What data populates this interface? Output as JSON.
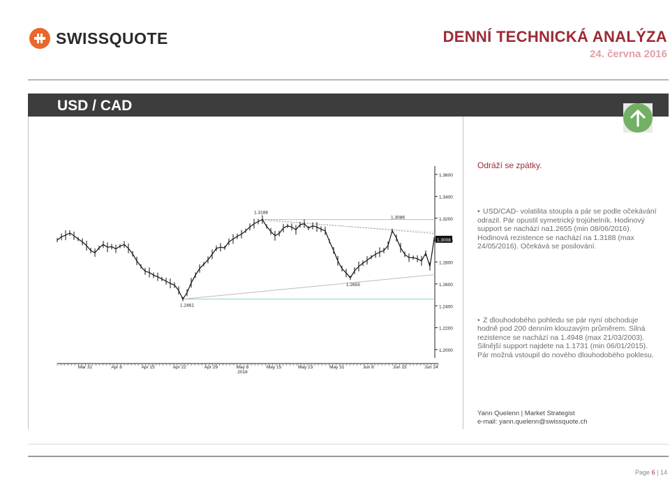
{
  "header": {
    "logo_text": "SWISSQUOTE",
    "report_title": "DENNÍ TECHNICKÁ ANALÝZA",
    "report_date": "24. června 2016"
  },
  "band": {
    "pair": "USD / CAD",
    "signal_icon": "arrow-up-icon"
  },
  "comment": {
    "headline": "Odráží se zpátky.",
    "bullets": [
      "USD/CAD- volatilita stoupla a pár se podle očekávání odrazil. Pár opustil symetrický trojúhelník. Hodinový support se nachází na1.2655 (min 08/06/2016). Hodinová rezistence se nachází na  1.3188 (max 24/05/2016). Očekává se posilování.",
      "Z dlouhodobého pohledu se pár nyní obchoduje hodně pod 200 denním klouzavým průměrem. Silná rezistence se nachází na 1.4948 (max 21/03/2003). Silnější support najdete na 1.1731 (min 06/01/2015). Pár možná vstoupil do nového dlouhodobého poklesu."
    ]
  },
  "author": {
    "line1": "Yann Quelenn | Market Strategist",
    "line2": "e-mail: yann.quelenn@swissquote.ch"
  },
  "footer": {
    "page_label": "Page",
    "page_num": "6",
    "page_sep": "|",
    "page_total": "14"
  },
  "colors": {
    "accent": "#9c2a36",
    "band": "#3d3d3d",
    "up": "#72b064",
    "trend": "#8fd0bf"
  },
  "chart_data": {
    "type": "line",
    "title": "",
    "ylim": [
      1.2,
      1.36
    ],
    "yticks": [
      "1.3600",
      "1.3400",
      "1.3200",
      "1.3000",
      "1.2800",
      "1.2600",
      "1.2400",
      "1.2200",
      "1.2000"
    ],
    "xticks": [
      "Mar 31",
      "Apr 8",
      "Apr 15",
      "Apr 22",
      "Apr 29",
      "May 8",
      "May 15",
      "May 23",
      "May 31",
      "Jun 8",
      "Jun 15",
      "Jun 24"
    ],
    "xtick_year": "2016",
    "series": [
      {
        "values": [
          1.3,
          1.303,
          1.3045,
          1.3065,
          1.304,
          1.301,
          1.2985,
          1.295,
          1.2905,
          1.2885,
          1.293,
          1.296,
          1.2935,
          1.294,
          1.292,
          1.2945,
          1.296,
          1.2925,
          1.2875,
          1.281,
          1.276,
          1.2715,
          1.2705,
          1.268,
          1.2665,
          1.2645,
          1.2625,
          1.2605,
          1.259,
          1.254,
          1.2461,
          1.252,
          1.261,
          1.268,
          1.274,
          1.278,
          1.282,
          1.287,
          1.2925,
          1.2935,
          1.293,
          1.2985,
          1.301,
          1.3035,
          1.3055,
          1.3085,
          1.312,
          1.315,
          1.317,
          1.3188,
          1.3125,
          1.308,
          1.304,
          1.306,
          1.311,
          1.313,
          1.312,
          1.3095,
          1.314,
          1.315,
          1.311,
          1.313,
          1.312,
          1.31,
          1.3085,
          1.299,
          1.2905,
          1.281,
          1.274,
          1.27,
          1.2655,
          1.272,
          1.276,
          1.279,
          1.2815,
          1.2845,
          1.287,
          1.289,
          1.2905,
          1.295,
          1.3086,
          1.302,
          1.293,
          1.287,
          1.284,
          1.284,
          1.283,
          1.281,
          1.288,
          1.276,
          1.3008
        ]
      }
    ],
    "price_labels": [
      "1.3188",
      "1.3086",
      "1.2655",
      "1.2461"
    ],
    "last_price_label": "1.3008",
    "lines": [
      {
        "kind": "horizontal",
        "y": 1.3188,
        "color": "#8fd0bf"
      },
      {
        "kind": "horizontal",
        "y": 1.2461,
        "color": "#8fd0bf"
      },
      {
        "kind": "trend",
        "from_label": "1.2461",
        "to_y": 1.2655,
        "color": "#bbbbbb"
      },
      {
        "kind": "trend",
        "from_label": "1.3188",
        "to_y": 1.3086,
        "color": "#888888",
        "dashed": true
      }
    ]
  }
}
